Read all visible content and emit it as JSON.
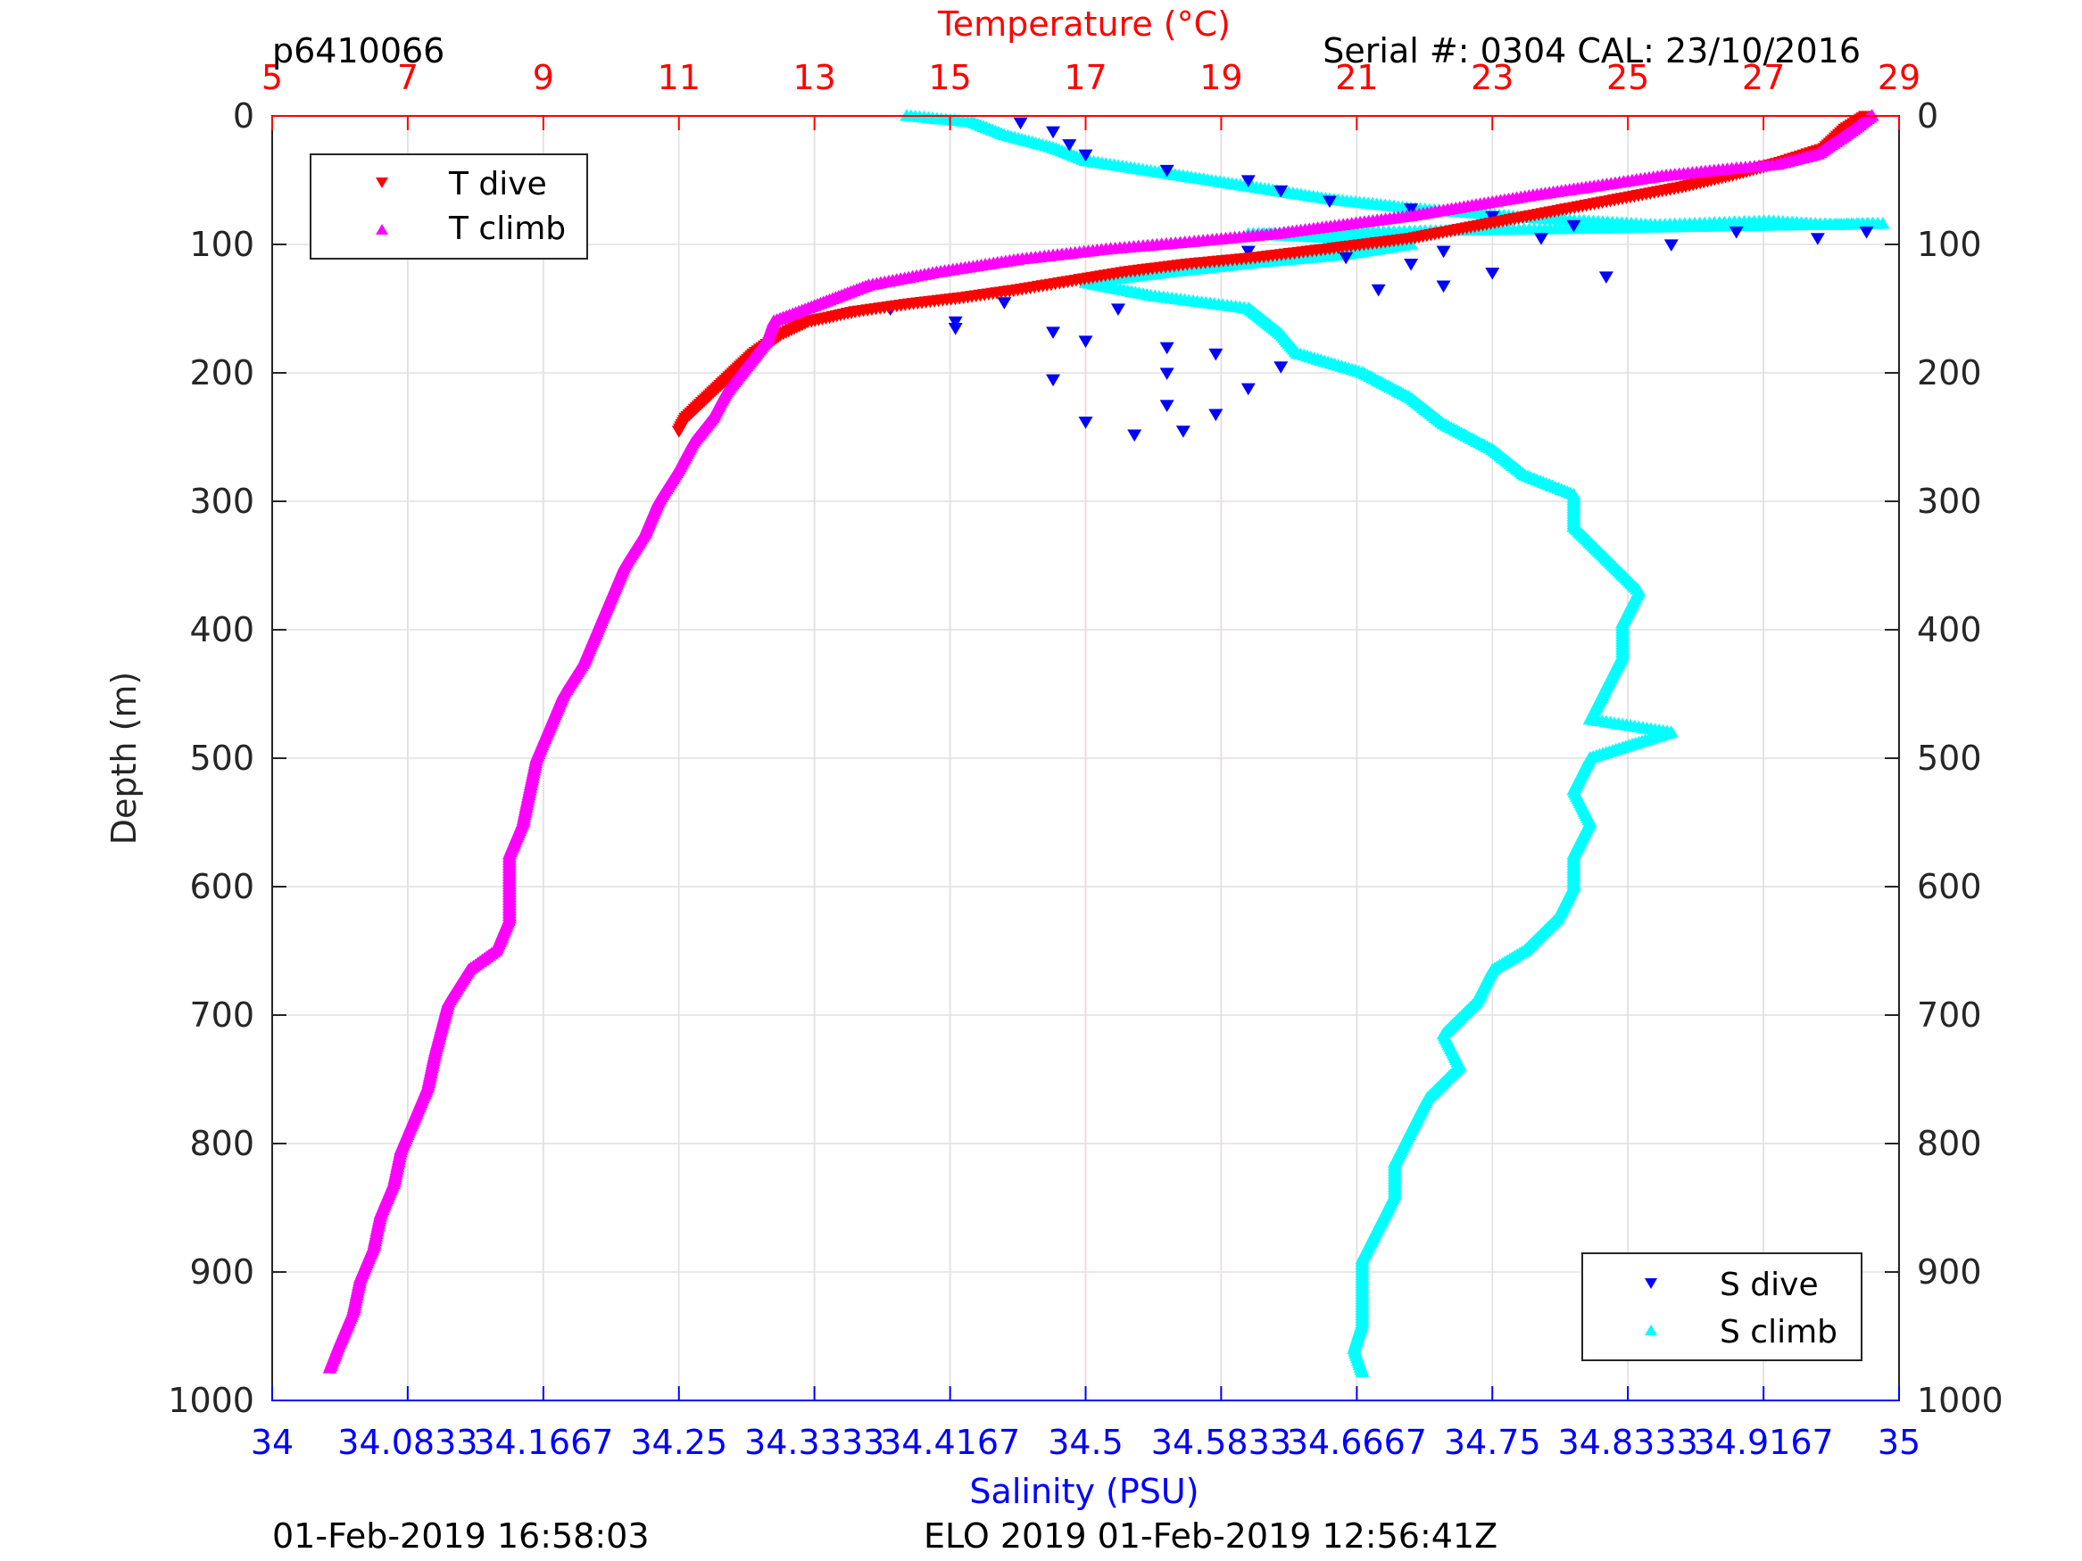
{
  "header": {
    "left_id": "p6410066",
    "right_serial": "Serial #: 0304  CAL: 23/10/2016"
  },
  "footer": {
    "left_time": "01-Feb-2019 16:58:03",
    "right_info": "ELO 2019 01-Feb-2019 12:56:41Z"
  },
  "colors": {
    "temperature_axis": "#ff0000",
    "salinity_axis": "#0000ff",
    "t_dive": "#ff0000",
    "t_climb": "#ff00ff",
    "s_dive": "#0000ff",
    "s_climb": "#00ffff",
    "grid": "#e0e0e0",
    "temp_grid": "#ffc8c8"
  },
  "chart_data": {
    "type": "scatter",
    "title": "",
    "ylabel": "Depth (m)",
    "x_top_label": "Temperature (°C)",
    "x_bottom_label": "Salinity (PSU)",
    "ylim": [
      0,
      1000
    ],
    "y_reversed": true,
    "yticks": [
      "0",
      "100",
      "200",
      "300",
      "400",
      "500",
      "600",
      "700",
      "800",
      "900",
      "1000"
    ],
    "temperature_axis": {
      "lim": [
        5,
        29
      ],
      "ticks": [
        "5",
        "7",
        "9",
        "11",
        "13",
        "15",
        "17",
        "19",
        "21",
        "23",
        "25",
        "27",
        "29"
      ]
    },
    "salinity_axis": {
      "lim": [
        34,
        35
      ],
      "ticks": [
        "34",
        "34.0833",
        "34.1667",
        "34.25",
        "34.3333",
        "34.4167",
        "34.5",
        "34.5833",
        "34.6667",
        "34.75",
        "34.8333",
        "34.9167",
        "35"
      ]
    },
    "grid": true,
    "legend_top": {
      "placement": "top-left",
      "entries": [
        "T dive",
        "T climb"
      ]
    },
    "legend_bottom": {
      "placement": "bottom-right",
      "entries": [
        "S dive",
        "S climb"
      ]
    },
    "series": [
      {
        "name": "T dive",
        "axis": "temperature",
        "marker": "triangle-down",
        "points": [
          [
            28.5,
            0
          ],
          [
            28.2,
            10
          ],
          [
            27.9,
            25
          ],
          [
            27.3,
            35
          ],
          [
            26.6,
            45
          ],
          [
            25.8,
            55
          ],
          [
            24.8,
            65
          ],
          [
            23.8,
            75
          ],
          [
            22.8,
            85
          ],
          [
            21.8,
            95
          ],
          [
            20.6,
            103
          ],
          [
            19.5,
            110
          ],
          [
            18.5,
            115
          ],
          [
            17.6,
            121
          ],
          [
            16.8,
            128
          ],
          [
            16.0,
            135
          ],
          [
            15.2,
            141
          ],
          [
            14.4,
            146
          ],
          [
            13.6,
            152
          ],
          [
            12.9,
            160
          ],
          [
            12.5,
            170
          ],
          [
            12.1,
            185
          ],
          [
            11.8,
            200
          ],
          [
            11.4,
            220
          ],
          [
            11.1,
            235
          ],
          [
            11.0,
            245
          ]
        ]
      },
      {
        "name": "T climb",
        "axis": "temperature",
        "marker": "triangle-up",
        "points": [
          [
            28.6,
            0
          ],
          [
            28.3,
            12
          ],
          [
            27.8,
            30
          ],
          [
            27.2,
            38
          ],
          [
            26.4,
            42
          ],
          [
            25.5,
            47
          ],
          [
            24.5,
            55
          ],
          [
            23.6,
            62
          ],
          [
            22.7,
            70
          ],
          [
            21.8,
            78
          ],
          [
            20.8,
            85
          ],
          [
            19.8,
            92
          ],
          [
            18.6,
            98
          ],
          [
            17.3,
            104
          ],
          [
            16.0,
            112
          ],
          [
            14.8,
            122
          ],
          [
            13.8,
            132
          ],
          [
            13.0,
            148
          ],
          [
            12.4,
            160
          ],
          [
            12.3,
            175
          ],
          [
            12.0,
            195
          ],
          [
            11.7,
            215
          ],
          [
            11.5,
            235
          ],
          [
            11.2,
            255
          ],
          [
            11.0,
            275
          ],
          [
            10.7,
            300
          ],
          [
            10.5,
            325
          ],
          [
            10.2,
            350
          ],
          [
            10.0,
            375
          ],
          [
            9.8,
            400
          ],
          [
            9.6,
            425
          ],
          [
            9.3,
            450
          ],
          [
            9.1,
            475
          ],
          [
            8.9,
            500
          ],
          [
            8.8,
            525
          ],
          [
            8.7,
            550
          ],
          [
            8.5,
            575
          ],
          [
            8.5,
            600
          ],
          [
            8.5,
            625
          ],
          [
            8.3,
            650
          ],
          [
            7.9,
            665
          ],
          [
            7.6,
            690
          ],
          [
            7.5,
            710
          ],
          [
            7.4,
            730
          ],
          [
            7.3,
            755
          ],
          [
            7.1,
            780
          ],
          [
            6.9,
            805
          ],
          [
            6.8,
            830
          ],
          [
            6.6,
            855
          ],
          [
            6.5,
            880
          ],
          [
            6.3,
            905
          ],
          [
            6.2,
            930
          ],
          [
            6.0,
            955
          ],
          [
            5.85,
            975
          ]
        ]
      },
      {
        "name": "S dive",
        "axis": "salinity",
        "marker": "triangle-down",
        "points": [
          [
            34.46,
            5
          ],
          [
            34.48,
            12
          ],
          [
            34.49,
            22
          ],
          [
            34.5,
            30
          ],
          [
            34.55,
            42
          ],
          [
            34.6,
            50
          ],
          [
            34.62,
            58
          ],
          [
            34.65,
            66
          ],
          [
            34.7,
            72
          ],
          [
            34.75,
            78
          ],
          [
            34.8,
            85
          ],
          [
            34.78,
            95
          ],
          [
            34.72,
            105
          ],
          [
            34.7,
            115
          ],
          [
            34.75,
            122
          ],
          [
            34.82,
            125
          ],
          [
            34.68,
            135
          ],
          [
            34.72,
            132
          ],
          [
            34.45,
            145
          ],
          [
            34.52,
            150
          ],
          [
            34.42,
            160
          ],
          [
            34.48,
            168
          ],
          [
            34.5,
            175
          ],
          [
            34.55,
            180
          ],
          [
            34.58,
            185
          ],
          [
            34.62,
            195
          ],
          [
            34.55,
            200
          ],
          [
            34.48,
            205
          ],
          [
            34.6,
            212
          ],
          [
            34.55,
            225
          ],
          [
            34.58,
            232
          ],
          [
            34.5,
            238
          ],
          [
            34.53,
            248
          ],
          [
            34.56,
            245
          ],
          [
            34.38,
            150
          ],
          [
            34.42,
            165
          ],
          [
            34.6,
            105
          ],
          [
            34.66,
            110
          ],
          [
            34.9,
            90
          ],
          [
            34.95,
            95
          ],
          [
            34.98,
            90
          ],
          [
            34.86,
            100
          ]
        ]
      },
      {
        "name": "S climb",
        "axis": "salinity",
        "marker": "triangle-up",
        "points": [
          [
            34.39,
            0
          ],
          [
            34.43,
            5
          ],
          [
            34.45,
            15
          ],
          [
            34.48,
            25
          ],
          [
            34.5,
            35
          ],
          [
            34.55,
            45
          ],
          [
            34.6,
            55
          ],
          [
            34.65,
            65
          ],
          [
            34.7,
            72
          ],
          [
            34.78,
            80
          ],
          [
            34.85,
            85
          ],
          [
            34.92,
            82
          ],
          [
            34.96,
            85
          ],
          [
            34.99,
            84
          ],
          [
            34.6,
            92
          ],
          [
            34.65,
            95
          ],
          [
            34.7,
            100
          ],
          [
            34.66,
            108
          ],
          [
            34.6,
            115
          ],
          [
            34.55,
            122
          ],
          [
            34.5,
            130
          ],
          [
            34.54,
            140
          ],
          [
            34.6,
            150
          ],
          [
            34.62,
            170
          ],
          [
            34.63,
            185
          ],
          [
            34.67,
            200
          ],
          [
            34.7,
            220
          ],
          [
            34.72,
            240
          ],
          [
            34.75,
            260
          ],
          [
            34.77,
            280
          ],
          [
            34.8,
            295
          ],
          [
            34.8,
            320
          ],
          [
            34.82,
            345
          ],
          [
            34.84,
            370
          ],
          [
            34.83,
            395
          ],
          [
            34.83,
            420
          ],
          [
            34.82,
            445
          ],
          [
            34.81,
            470
          ],
          [
            34.86,
            480
          ],
          [
            34.81,
            500
          ],
          [
            34.8,
            525
          ],
          [
            34.81,
            550
          ],
          [
            34.8,
            575
          ],
          [
            34.8,
            600
          ],
          [
            34.79,
            625
          ],
          [
            34.77,
            650
          ],
          [
            34.75,
            665
          ],
          [
            34.74,
            690
          ],
          [
            34.72,
            715
          ],
          [
            34.73,
            740
          ],
          [
            34.71,
            765
          ],
          [
            34.7,
            790
          ],
          [
            34.69,
            815
          ],
          [
            34.69,
            840
          ],
          [
            34.68,
            865
          ],
          [
            34.67,
            890
          ],
          [
            34.67,
            915
          ],
          [
            34.67,
            940
          ],
          [
            34.665,
            960
          ],
          [
            34.67,
            978
          ]
        ]
      }
    ]
  }
}
